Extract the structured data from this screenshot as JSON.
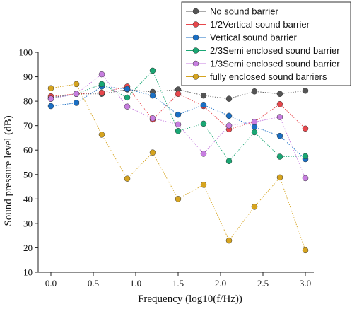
{
  "chart_data": {
    "type": "line",
    "xlabel": "Frequency (log10(f/Hz))",
    "ylabel": "Sound pressure level (dB)",
    "xlim": [
      -0.15,
      3.1
    ],
    "ylim": [
      10,
      100
    ],
    "x_ticks": [
      0.0,
      0.5,
      1.0,
      1.5,
      2.0,
      2.5,
      3.0
    ],
    "x_tick_labels": [
      "0.0",
      "0.5",
      "1.0",
      "1.5",
      "2.0",
      "2.5",
      "3.0"
    ],
    "y_ticks": [
      10,
      20,
      30,
      40,
      50,
      60,
      70,
      80,
      90,
      100
    ],
    "y_tick_labels": [
      "10",
      "20",
      "30",
      "40",
      "50",
      "60",
      "70",
      "80",
      "90",
      "100"
    ],
    "grid": false,
    "legend_position": "top-right",
    "x": [
      0.0,
      0.3,
      0.6,
      0.9,
      1.2,
      1.5,
      1.8,
      2.1,
      2.4,
      2.7,
      3.0
    ],
    "series": [
      {
        "name": "No sound barrier",
        "color": "#555555",
        "values": [
          81.5,
          83.0,
          83.0,
          84.8,
          83.8,
          84.8,
          82.3,
          81.0,
          84.0,
          83.0,
          84.3
        ]
      },
      {
        "name": "1/2Vertical sound barrier",
        "color": "#e8474c",
        "values": [
          82.0,
          83.0,
          83.5,
          86.0,
          72.5,
          83.0,
          78.0,
          68.5,
          71.5,
          78.8,
          68.8
        ]
      },
      {
        "name": "Vertical sound barrier",
        "color": "#1a6fc4",
        "values": [
          78.0,
          79.3,
          86.0,
          85.0,
          82.3,
          74.5,
          78.5,
          74.0,
          69.5,
          65.8,
          56.3
        ]
      },
      {
        "name": "2/3Semi enclosed sound barrier",
        "color": "#1aa774",
        "values": [
          81.0,
          83.0,
          87.0,
          81.5,
          92.5,
          67.8,
          70.8,
          55.5,
          67.3,
          57.3,
          57.5
        ]
      },
      {
        "name": "1/3Semi enclosed sound barrier",
        "color": "#c77ee0",
        "values": [
          81.0,
          83.0,
          91.0,
          77.8,
          73.0,
          70.5,
          58.5,
          70.0,
          71.5,
          73.5,
          48.5
        ]
      },
      {
        "name": "fully enclosed sound barriers",
        "color": "#d6a41f",
        "values": [
          85.3,
          87.0,
          66.3,
          48.3,
          59.0,
          40.0,
          45.8,
          23.0,
          36.8,
          48.8,
          19.0
        ]
      }
    ]
  }
}
